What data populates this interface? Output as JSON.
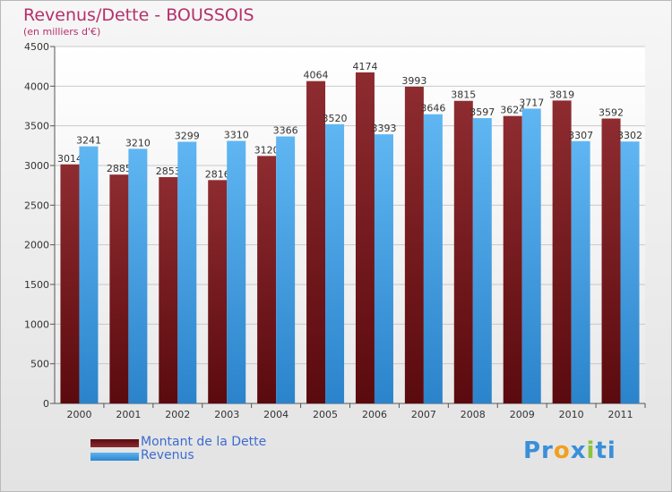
{
  "chart_data": {
    "type": "bar",
    "title": "Revenus/Dette - BOUSSOIS",
    "subtitle": "(en milliers d'€)",
    "categories": [
      "2000",
      "2001",
      "2002",
      "2003",
      "2004",
      "2005",
      "2006",
      "2007",
      "2008",
      "2009",
      "2010",
      "2011"
    ],
    "series": [
      {
        "name": "Montant de la Dette",
        "color": "#7a1a1e",
        "values": [
          3014,
          2885,
          2853,
          2816,
          3120,
          4064,
          4174,
          3993,
          3815,
          3624,
          3819,
          3592
        ]
      },
      {
        "name": "Revenus",
        "color": "#4aa3e6",
        "values": [
          3241,
          3210,
          3299,
          3310,
          3366,
          3520,
          3393,
          3646,
          3597,
          3717,
          3307,
          3302
        ]
      }
    ],
    "yticks": [
      0,
      500,
      1000,
      1500,
      2000,
      2500,
      3000,
      3500,
      4000,
      4500
    ],
    "ylim": [
      0,
      4500
    ],
    "grid": true,
    "legend": "bottom-left"
  },
  "logo": {
    "text_parts": [
      {
        "t": "Pr",
        "color": "#3a8fd8"
      },
      {
        "t": "o",
        "color": "#f0a020"
      },
      {
        "t": "x",
        "color": "#3a8fd8"
      },
      {
        "t": "i",
        "color": "#8bc43f"
      },
      {
        "t": "ti",
        "color": "#3a8fd8"
      }
    ]
  }
}
